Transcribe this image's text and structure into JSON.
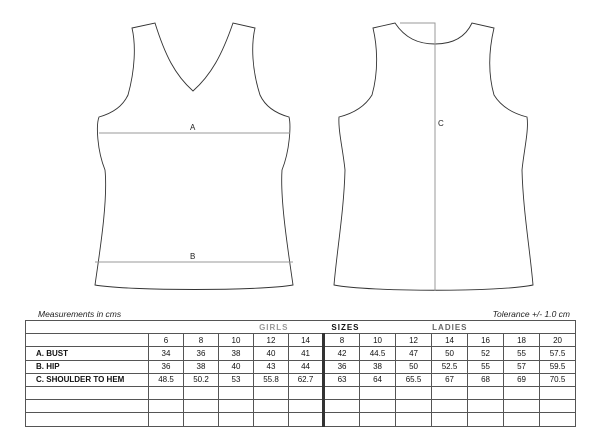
{
  "front": {
    "line_a": "A",
    "line_b": "B"
  },
  "back": {
    "line_c": "C"
  },
  "notes": {
    "units": "Measurements in cms",
    "tolerance": "Tolerance +/- 1.0 cm"
  },
  "table": {
    "groups": {
      "girls": "GIRLS",
      "sizes": "SIZES",
      "ladies": "LADIES"
    },
    "girls_sizes": [
      "6",
      "8",
      "10",
      "12",
      "14"
    ],
    "ladies_sizes": [
      "8",
      "10",
      "12",
      "14",
      "16",
      "18",
      "20"
    ],
    "rows": [
      {
        "code": "A.",
        "label": "BUST",
        "girls": [
          "34",
          "36",
          "38",
          "40",
          "41"
        ],
        "ladies": [
          "42",
          "44.5",
          "47",
          "50",
          "52",
          "55",
          "57.5"
        ]
      },
      {
        "code": "B.",
        "label": "HIP",
        "girls": [
          "36",
          "38",
          "40",
          "43",
          "44"
        ],
        "ladies": [
          "36",
          "38",
          "50",
          "52.5",
          "55",
          "57",
          "59.5"
        ]
      },
      {
        "code": "C.",
        "label": "SHOULDER TO HEM",
        "girls": [
          "48.5",
          "50.2",
          "53",
          "55.8",
          "62.7"
        ],
        "ladies": [
          "63",
          "64",
          "65.5",
          "67",
          "68",
          "69",
          "70.5"
        ]
      }
    ]
  }
}
